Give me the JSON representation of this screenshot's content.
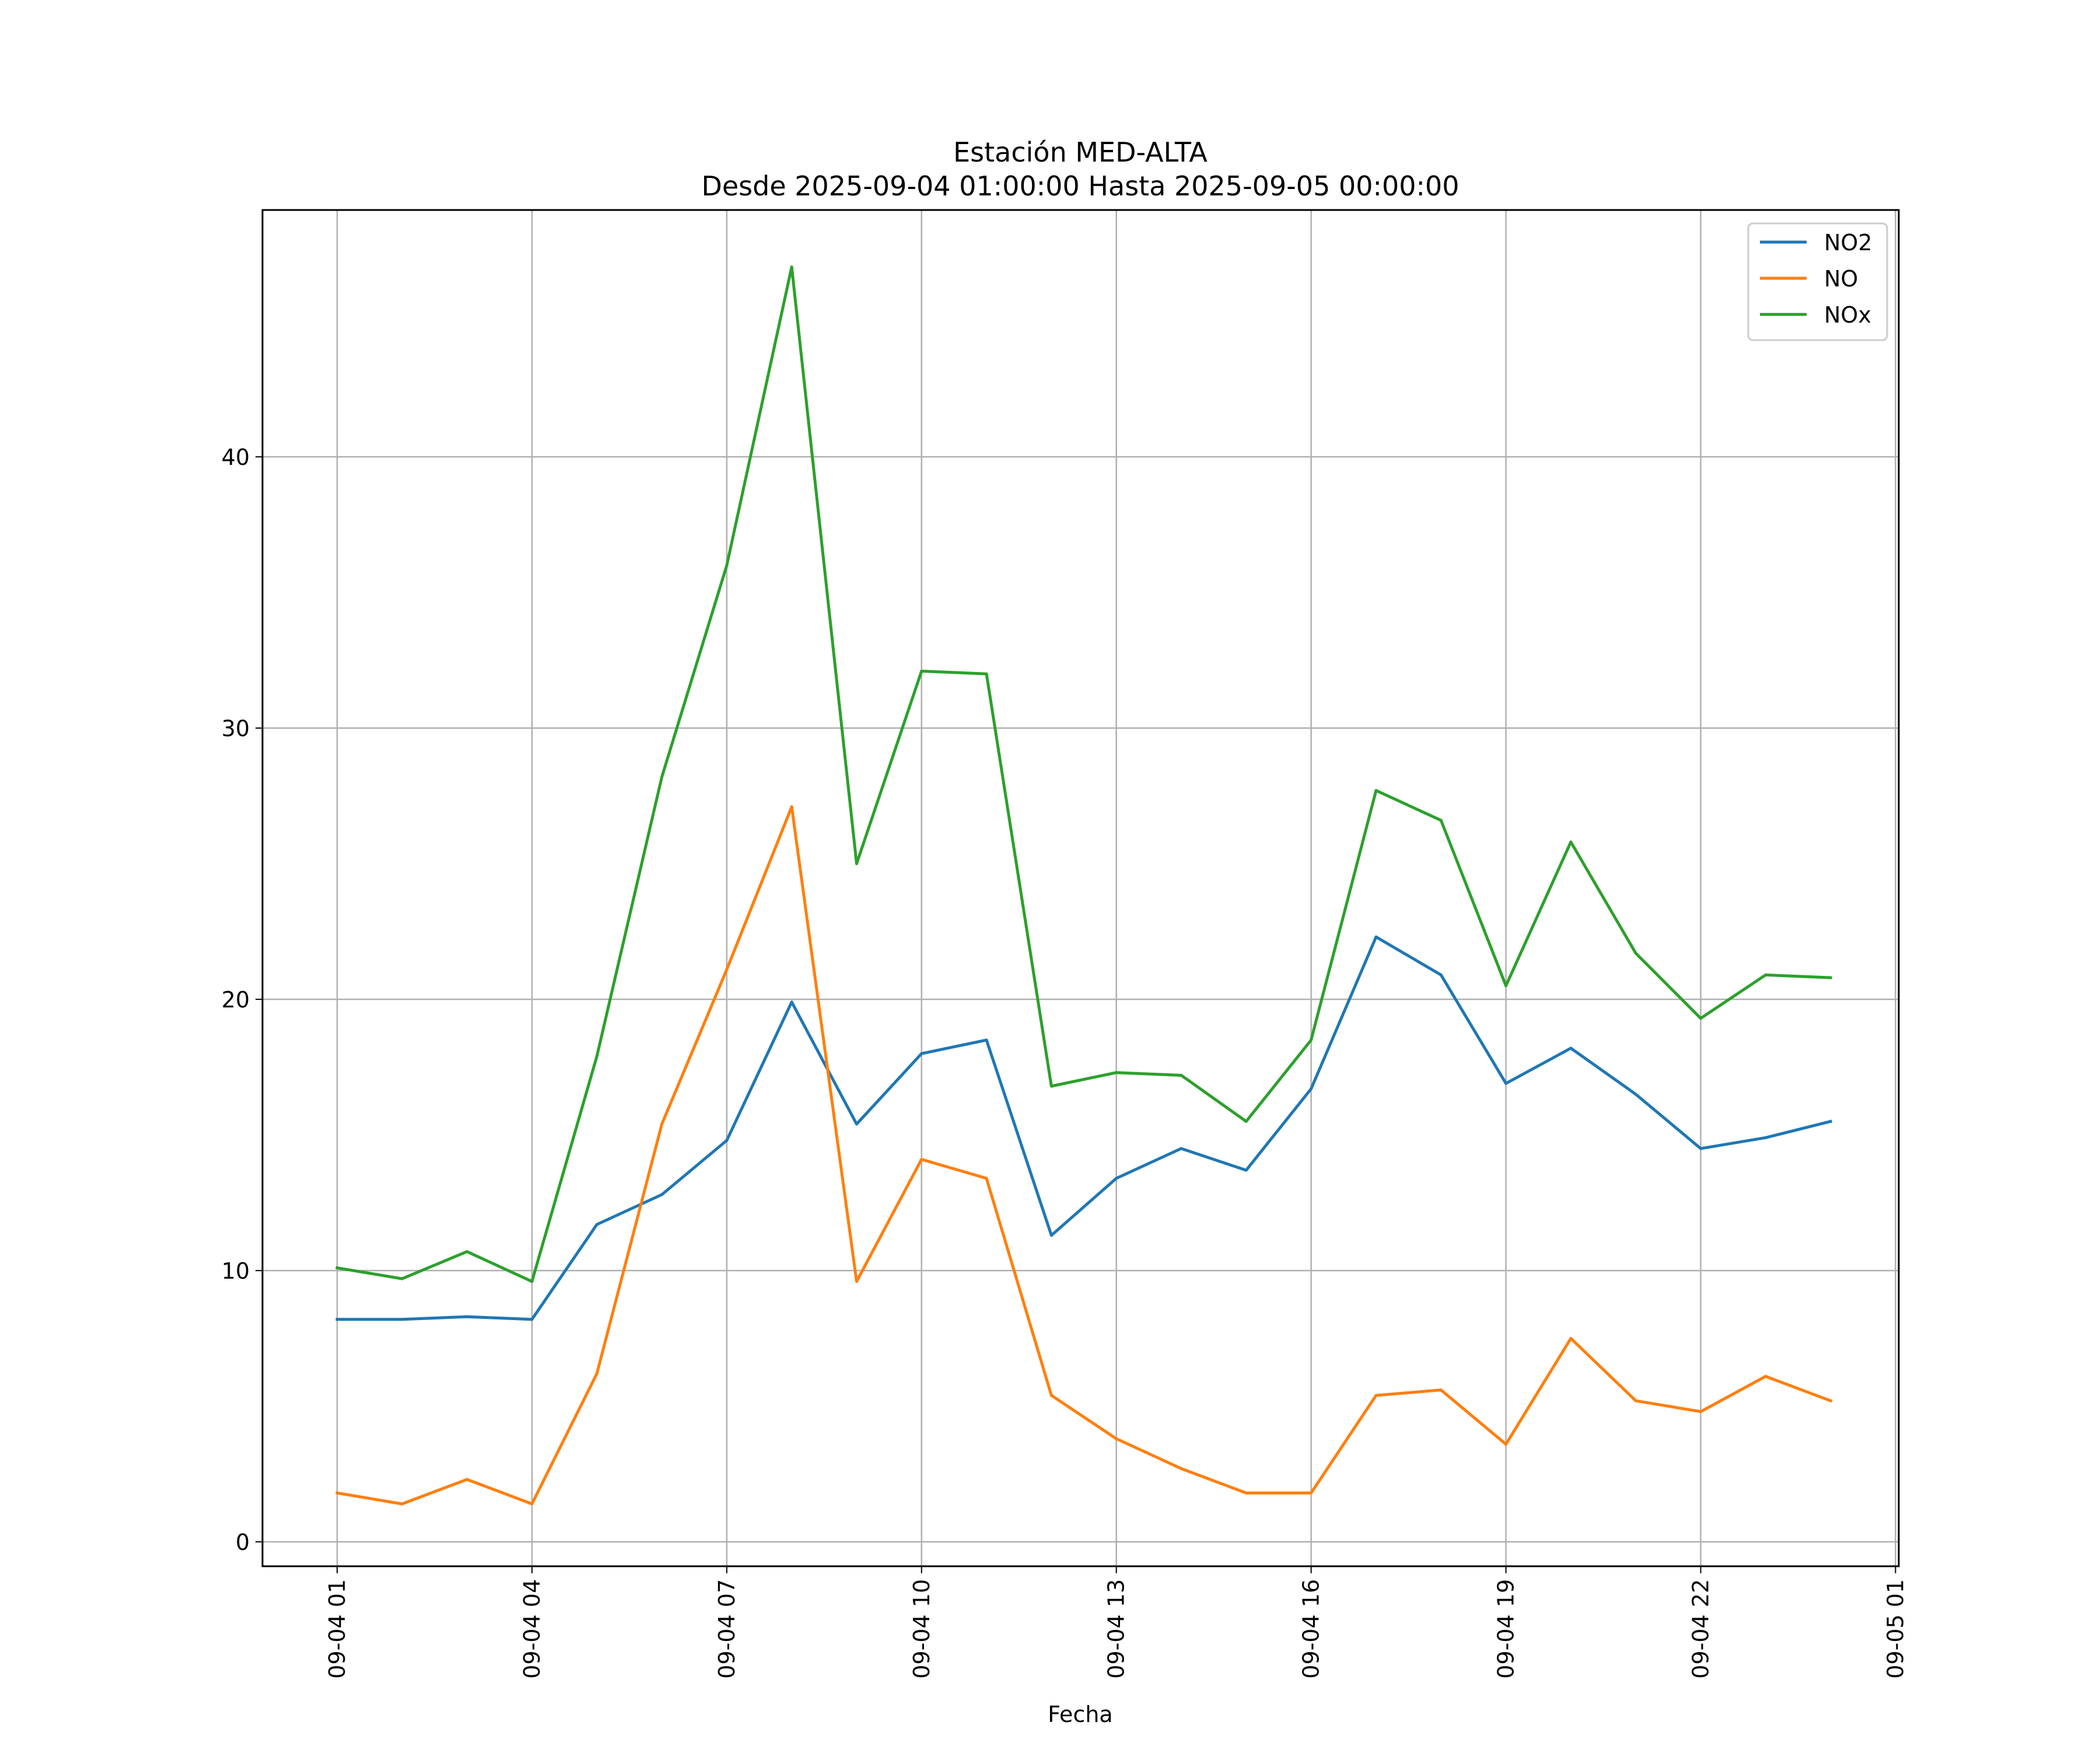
{
  "chart_data": {
    "type": "line",
    "title_line1": "Estación MED-ALTA",
    "title_line2": "Desde 2025-09-04 01:00:00 Hasta 2025-09-05 00:00:00",
    "xlabel": "Fecha",
    "ylabel": "",
    "x_hours": [
      1,
      2,
      3,
      4,
      5,
      6,
      7,
      8,
      9,
      10,
      11,
      12,
      13,
      14,
      15,
      16,
      17,
      18,
      19,
      20,
      21,
      22,
      23,
      24
    ],
    "xlim": [
      -0.15,
      25.05
    ],
    "ylim": [
      -0.9,
      49.1
    ],
    "yticks": [
      0,
      10,
      20,
      30,
      40
    ],
    "xticks": [
      {
        "hour": 1,
        "label": "09-04 01"
      },
      {
        "hour": 4,
        "label": "09-04 04"
      },
      {
        "hour": 7,
        "label": "09-04 07"
      },
      {
        "hour": 10,
        "label": "09-04 10"
      },
      {
        "hour": 13,
        "label": "09-04 13"
      },
      {
        "hour": 16,
        "label": "09-04 16"
      },
      {
        "hour": 19,
        "label": "09-04 19"
      },
      {
        "hour": 22,
        "label": "09-04 22"
      },
      {
        "hour": 25,
        "label": "09-05 01"
      }
    ],
    "grid": true,
    "legend_position": "top-right",
    "series": [
      {
        "name": "NO2",
        "color": "#1f77b4",
        "values": [
          8.2,
          8.2,
          8.3,
          8.2,
          11.7,
          12.8,
          14.8,
          19.9,
          15.4,
          18.0,
          18.5,
          11.3,
          13.4,
          14.5,
          13.7,
          16.7,
          22.3,
          20.9,
          16.9,
          18.2,
          16.5,
          14.5,
          14.9,
          15.5
        ]
      },
      {
        "name": "NO",
        "color": "#ff7f0e",
        "values": [
          1.8,
          1.4,
          2.3,
          1.4,
          6.2,
          15.4,
          21.1,
          27.1,
          9.6,
          14.1,
          13.4,
          5.4,
          3.8,
          2.7,
          1.8,
          1.8,
          5.4,
          5.6,
          3.6,
          7.5,
          5.2,
          4.8,
          6.1,
          5.2
        ]
      },
      {
        "name": "NOx",
        "color": "#2ca02c",
        "values": [
          10.1,
          9.7,
          10.7,
          9.6,
          17.9,
          28.2,
          36.0,
          47.0,
          25.0,
          32.1,
          32.0,
          16.8,
          17.3,
          17.2,
          15.5,
          18.5,
          27.7,
          26.6,
          20.5,
          25.8,
          21.7,
          19.3,
          20.9,
          20.8
        ]
      }
    ]
  }
}
